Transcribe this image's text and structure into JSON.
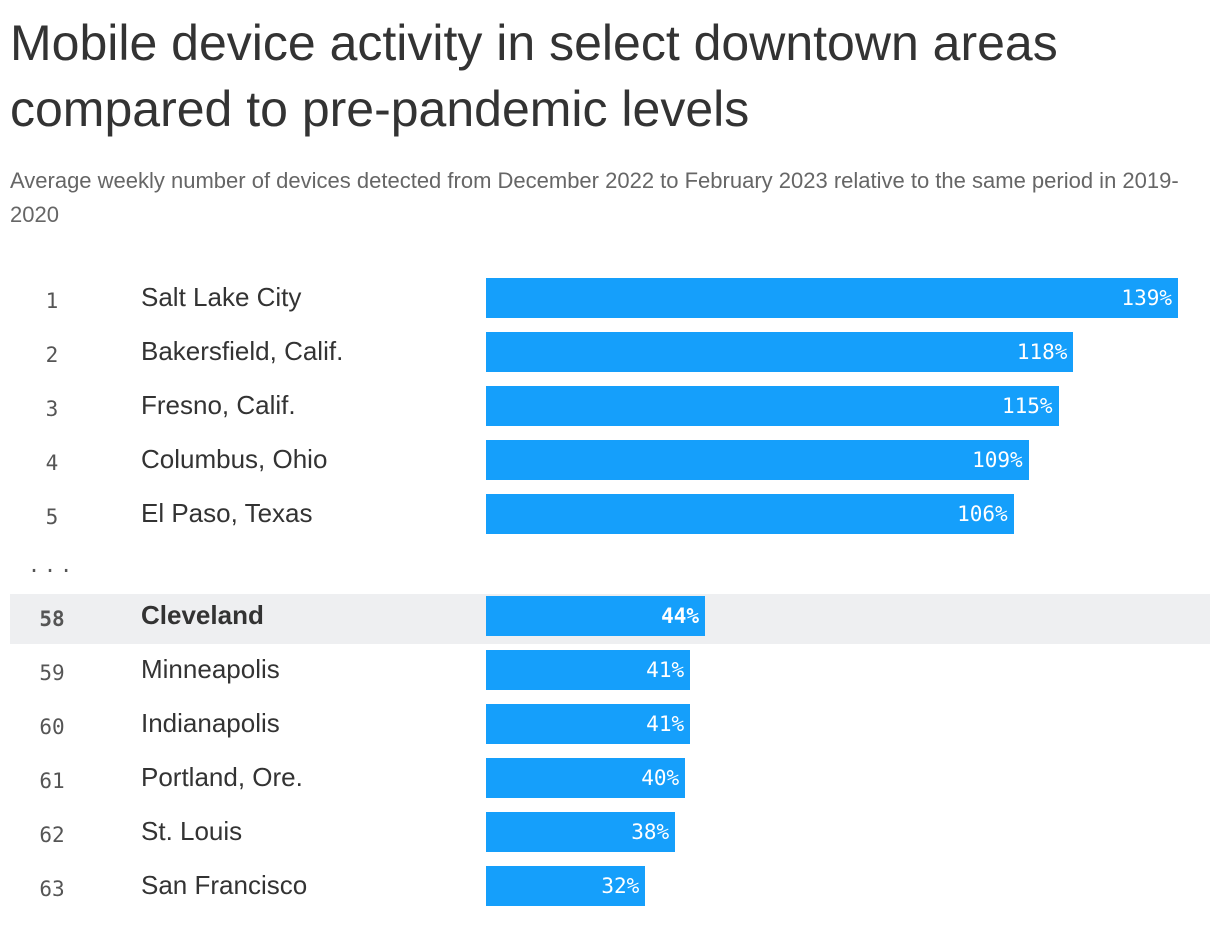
{
  "title": "Mobile device activity in select downtown areas compared to pre-pandemic levels",
  "subtitle": "Average weekly number of devices detected from December 2022 to February 2023 relative to the same period in 2019-2020",
  "ellipsis": "...",
  "colors": {
    "bar": "#159ffb",
    "highlight_row": "#eeeff1"
  },
  "chart_data": {
    "type": "bar",
    "orientation": "horizontal",
    "value_suffix": "%",
    "xlim": [
      0,
      139
    ],
    "highlight": "Cleveland",
    "rows": [
      {
        "rank": "1",
        "city": "Salt Lake City",
        "value": 139
      },
      {
        "rank": "2",
        "city": "Bakersfield, Calif.",
        "value": 118
      },
      {
        "rank": "3",
        "city": "Fresno, Calif.",
        "value": 115
      },
      {
        "rank": "4",
        "city": "Columbus, Ohio",
        "value": 109
      },
      {
        "rank": "5",
        "city": "El Paso, Texas",
        "value": 106
      },
      {
        "rank": "58",
        "city": "Cleveland",
        "value": 44
      },
      {
        "rank": "59",
        "city": "Minneapolis",
        "value": 41
      },
      {
        "rank": "60",
        "city": "Indianapolis",
        "value": 41
      },
      {
        "rank": "61",
        "city": "Portland, Ore.",
        "value": 40
      },
      {
        "rank": "62",
        "city": "St. Louis",
        "value": 38
      },
      {
        "rank": "63",
        "city": "San Francisco",
        "value": 32
      }
    ]
  }
}
